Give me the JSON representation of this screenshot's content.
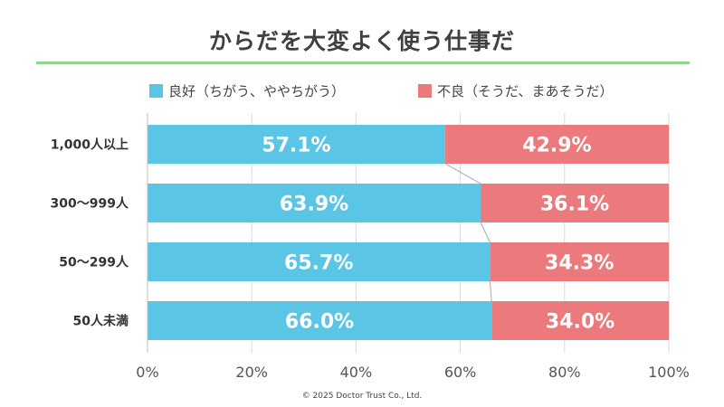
{
  "chart_data": {
    "type": "bar",
    "orientation": "horizontal",
    "stacked": true,
    "title": "からだを大変よく使う仕事だ",
    "categories": [
      "1,000人以上",
      "300～999人",
      "50～299人",
      "50人未満"
    ],
    "series": [
      {
        "name": "良好（ちがう、ややちがう）",
        "color": "#5bc5e6",
        "values": [
          57.1,
          63.9,
          65.7,
          66.0
        ],
        "labels": [
          "57.1%",
          "63.9%",
          "65.7%",
          "66.0%"
        ]
      },
      {
        "name": "不良（そうだ、まあそうだ）",
        "color": "#ec7a7c",
        "values": [
          42.9,
          36.1,
          34.3,
          34.0
        ],
        "labels": [
          "42.9%",
          "36.1%",
          "34.3%",
          "34.0%"
        ]
      }
    ],
    "x_ticks": [
      "0%",
      "20%",
      "40%",
      "60%",
      "80%",
      "100%"
    ],
    "xlim": [
      0,
      100
    ],
    "grid": true,
    "legend_position": "top",
    "series_lines": true
  },
  "footer": "© 2025 Doctor Trust Co., Ltd."
}
